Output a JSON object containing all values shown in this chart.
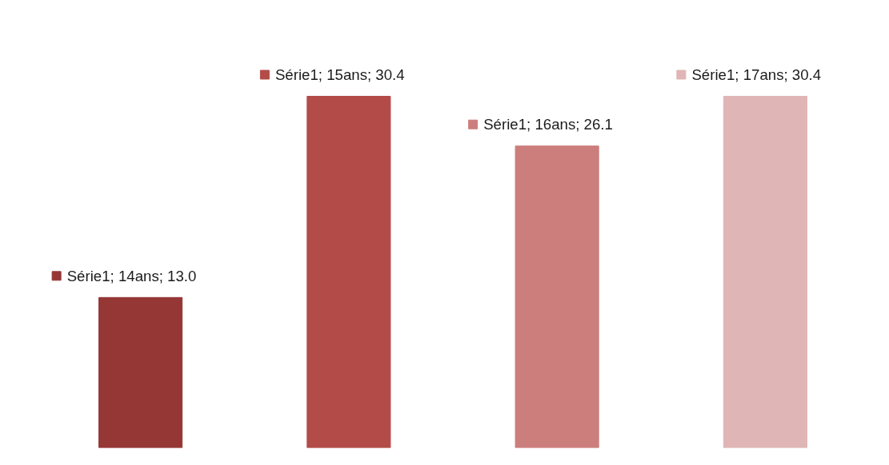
{
  "chart_data": {
    "type": "bar",
    "categories": [
      null,
      null,
      null,
      null
    ],
    "series": [
      {
        "values": [
          13.0,
          30.4,
          26.1,
          30.4
        ],
        "colors": [
          "#953735",
          "#b34c49",
          "#cc7e7c",
          "#dfb5b5"
        ],
        "value_labels": [
          "Série1; 14ans; 13.0",
          "Série1; 15ans; 30.4",
          "Série1; 16ans; 26.1",
          "Série1; 17ans; 30.4"
        ]
      }
    ],
    "grid": false,
    "tick_labels": false
  }
}
